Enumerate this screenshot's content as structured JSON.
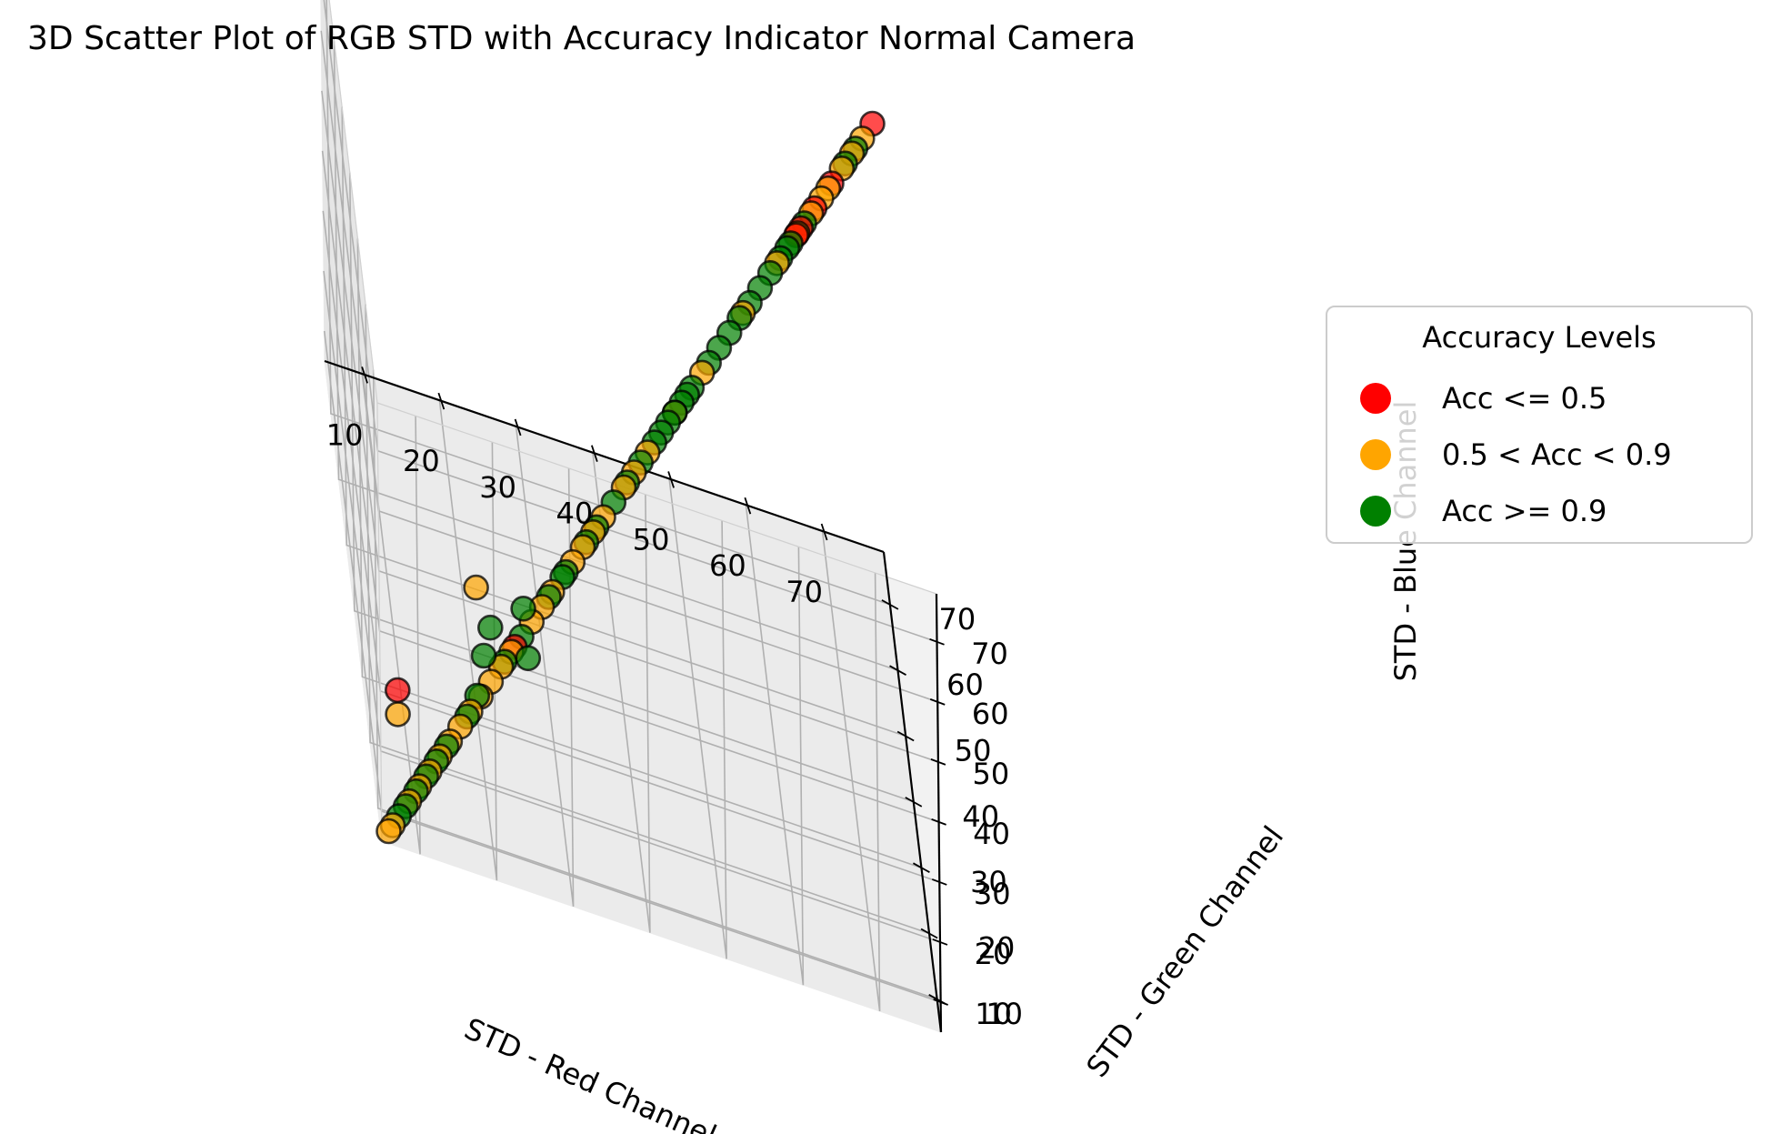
{
  "chart_data": {
    "type": "scatter",
    "title": "3D Scatter Plot of RGB STD with Accuracy Indicator Normal Camera",
    "xlabel": "STD - Red Channel",
    "ylabel": "STD - Green Channel",
    "zlabel": "STD - Blue Channel",
    "xticks": [
      10,
      20,
      30,
      40,
      50,
      60,
      70
    ],
    "yticks": [
      10,
      20,
      30,
      40,
      50,
      60,
      70
    ],
    "zticks": [
      10,
      20,
      30,
      40,
      50,
      60,
      70
    ],
    "xlim": [
      5,
      78
    ],
    "ylim": [
      5,
      78
    ],
    "zlim": [
      5,
      78
    ],
    "grid": true,
    "legend": {
      "title": "Accuracy Levels",
      "placement": "outside-right",
      "entries": [
        {
          "label": "Acc <= 0.5",
          "color": "#ff0000"
        },
        {
          "label": "0.5 < Acc < 0.9",
          "color": "#ffa500"
        },
        {
          "label": "Acc >= 0.9",
          "color": "#008000"
        }
      ]
    },
    "series": [
      {
        "name": "Acc <= 0.5",
        "color": "#ff0000",
        "points": [
          [
            7.5,
            7.5,
            28.5
          ],
          [
            24.5,
            24.5,
            24.5
          ],
          [
            65.8,
            65.8,
            65.8
          ],
          [
            66.5,
            66.5,
            66.5
          ],
          [
            68.5,
            68.5,
            68.5
          ],
          [
            71,
            71,
            71
          ],
          [
            77,
            77,
            77
          ]
        ]
      },
      {
        "name": "0.5 < Acc < 0.9",
        "color": "#ffa500",
        "points": [
          [
            6,
            6,
            6
          ],
          [
            6.6,
            6.6,
            6.6
          ],
          [
            7.5,
            7.5,
            24.5
          ],
          [
            9,
            9,
            9
          ],
          [
            10.5,
            10.5,
            10.5
          ],
          [
            12,
            12,
            12
          ],
          [
            13.5,
            13.5,
            13.5
          ],
          [
            15,
            15,
            15
          ],
          [
            16.5,
            16.5,
            16.5
          ],
          [
            18,
            18,
            18
          ],
          [
            19.5,
            19.5,
            19.5
          ],
          [
            21,
            21,
            21
          ],
          [
            19,
            19,
            38
          ],
          [
            22.5,
            22.5,
            22.5
          ],
          [
            24,
            24,
            24
          ],
          [
            27,
            27,
            27
          ],
          [
            28.5,
            28.5,
            28.5
          ],
          [
            30,
            30,
            30
          ],
          [
            33,
            33,
            33
          ],
          [
            34.5,
            34.5,
            34.5
          ],
          [
            36,
            36,
            36
          ],
          [
            37.5,
            37.5,
            37.5
          ],
          [
            40.5,
            40.5,
            40.5
          ],
          [
            42,
            42,
            42
          ],
          [
            44,
            44,
            44
          ],
          [
            48,
            48,
            48
          ],
          [
            52,
            52,
            52
          ],
          [
            58,
            58,
            58
          ],
          [
            63,
            63,
            63
          ],
          [
            66,
            66,
            66
          ],
          [
            68,
            68,
            68
          ],
          [
            69.5,
            69.5,
            69.5
          ],
          [
            70.5,
            70.5,
            70.5
          ],
          [
            72.5,
            72.5,
            72.5
          ],
          [
            74,
            74,
            74
          ],
          [
            75.5,
            75.5,
            75.5
          ]
        ]
      },
      {
        "name": "Acc >= 0.9",
        "color": "#008000",
        "points": [
          [
            7.5,
            7.5,
            7.5
          ],
          [
            8.5,
            8.5,
            8.5
          ],
          [
            10,
            10,
            10
          ],
          [
            11.5,
            11.5,
            11.5
          ],
          [
            13,
            13,
            13
          ],
          [
            14.5,
            14.5,
            14.5
          ],
          [
            17.5,
            17.5,
            17.5
          ],
          [
            19,
            19,
            20
          ],
          [
            20,
            20,
            26
          ],
          [
            21,
            21,
            30
          ],
          [
            23,
            23,
            23
          ],
          [
            25.5,
            25.5,
            25.5
          ],
          [
            26,
            22,
            26
          ],
          [
            25.8,
            25.8,
            30
          ],
          [
            29.5,
            29.5,
            29.5
          ],
          [
            31.5,
            31.5,
            31.5
          ],
          [
            32,
            32,
            32
          ],
          [
            35,
            35,
            35
          ],
          [
            36.5,
            36.5,
            36.5
          ],
          [
            39,
            39,
            39
          ],
          [
            41,
            41,
            41
          ],
          [
            43,
            43,
            43
          ],
          [
            45,
            45,
            45
          ],
          [
            46,
            46,
            46
          ],
          [
            47,
            47,
            47
          ],
          [
            48,
            48,
            48
          ],
          [
            49,
            49,
            49
          ],
          [
            49.8,
            49.8,
            49.8
          ],
          [
            50.5,
            50.5,
            50.5
          ],
          [
            53,
            53,
            53
          ],
          [
            54.5,
            54.5,
            54.5
          ],
          [
            56,
            56,
            56
          ],
          [
            57.5,
            57.5,
            57.5
          ],
          [
            59,
            59,
            59
          ],
          [
            60.5,
            60.5,
            60.5
          ],
          [
            62,
            62,
            62
          ],
          [
            63.5,
            63.5,
            63.5
          ],
          [
            64.5,
            64.5,
            64.5
          ],
          [
            65,
            65,
            65
          ],
          [
            67,
            67,
            67
          ],
          [
            73,
            73,
            73
          ],
          [
            74.5,
            74.5,
            74.5
          ]
        ]
      }
    ]
  }
}
